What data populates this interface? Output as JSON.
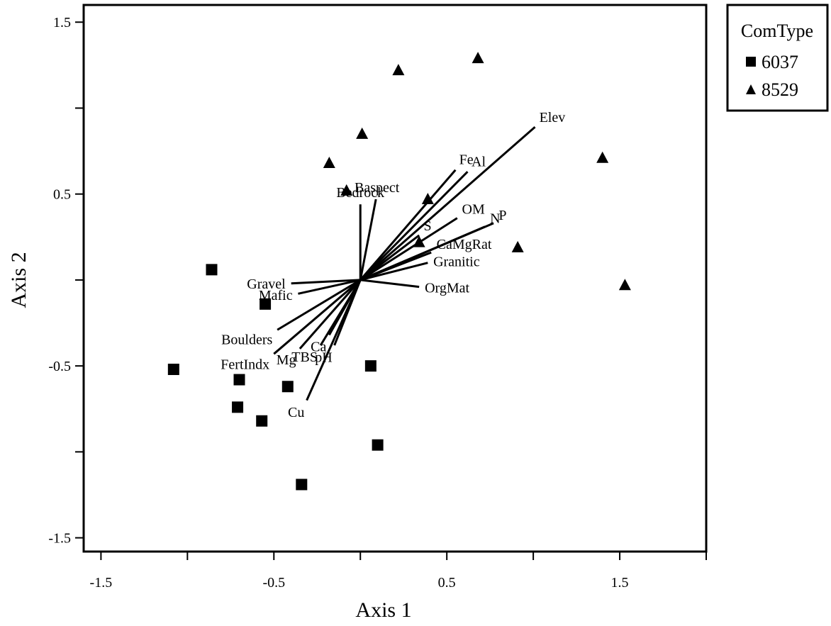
{
  "chart_data": {
    "type": "scatter",
    "xlabel": "Axis 1",
    "ylabel": "Axis 2",
    "xlim": [
      -1.6,
      2.0
    ],
    "ylim": [
      -1.58,
      1.6
    ],
    "xticks": [
      -1.5,
      -1.0,
      -0.5,
      0.0,
      0.5,
      1.0,
      1.5,
      2.0
    ],
    "yticks": [
      -1.5,
      -1.0,
      -0.5,
      0.0,
      0.5,
      1.0,
      1.5
    ],
    "xtick_labels": [
      "-1.5",
      "",
      "-0.5",
      "",
      "0.5",
      "",
      "1.5",
      ""
    ],
    "ytick_labels": [
      "-1.5",
      "",
      "-0.5",
      "",
      "0.5",
      "",
      "1.5"
    ],
    "grid": false,
    "legend": {
      "title": "ComType",
      "position": "outside-top-right",
      "entries": [
        {
          "label": "6037",
          "marker": "square"
        },
        {
          "label": "8529",
          "marker": "triangle"
        }
      ]
    },
    "series": [
      {
        "name": "6037",
        "marker": "square",
        "points": [
          {
            "x": -0.86,
            "y": 0.06
          },
          {
            "x": -0.55,
            "y": -0.14
          },
          {
            "x": -1.08,
            "y": -0.52
          },
          {
            "x": -0.7,
            "y": -0.58
          },
          {
            "x": -0.71,
            "y": -0.74
          },
          {
            "x": -0.57,
            "y": -0.82
          },
          {
            "x": -0.42,
            "y": -0.62
          },
          {
            "x": 0.06,
            "y": -0.5
          },
          {
            "x": 0.1,
            "y": -0.96
          },
          {
            "x": -0.34,
            "y": -1.19
          }
        ]
      },
      {
        "name": "8529",
        "marker": "triangle",
        "points": [
          {
            "x": 0.22,
            "y": 1.22
          },
          {
            "x": 0.68,
            "y": 1.29
          },
          {
            "x": 0.01,
            "y": 0.85
          },
          {
            "x": -0.18,
            "y": 0.68
          },
          {
            "x": -0.08,
            "y": 0.52
          },
          {
            "x": 0.39,
            "y": 0.47
          },
          {
            "x": 0.34,
            "y": 0.22
          },
          {
            "x": 0.91,
            "y": 0.19
          },
          {
            "x": 1.4,
            "y": 0.71
          },
          {
            "x": 1.53,
            "y": -0.03
          }
        ]
      }
    ],
    "vectors": [
      {
        "label": "Elev",
        "x": 1.01,
        "y": 0.89
      },
      {
        "label": "Fe",
        "x": 0.55,
        "y": 0.64
      },
      {
        "label": "Al",
        "x": 0.62,
        "y": 0.63
      },
      {
        "label": "Baspect",
        "x": 0.09,
        "y": 0.47
      },
      {
        "label": "Bedrock",
        "x": 0.0,
        "y": 0.44
      },
      {
        "label": "OM",
        "x": 0.56,
        "y": 0.36
      },
      {
        "label": "P",
        "x": 0.77,
        "y": 0.33
      },
      {
        "label": "N",
        "x": 0.72,
        "y": 0.31
      },
      {
        "label": "S",
        "x": 0.34,
        "y": 0.26
      },
      {
        "label": "CaMgRat",
        "x": 0.41,
        "y": 0.16
      },
      {
        "label": "Granitic",
        "x": 0.39,
        "y": 0.1
      },
      {
        "label": "OrgMat",
        "x": 0.34,
        "y": -0.04
      },
      {
        "label": "Gravel",
        "x": -0.4,
        "y": -0.02
      },
      {
        "label": "Mafic",
        "x": -0.36,
        "y": -0.08
      },
      {
        "label": "Boulders",
        "x": -0.48,
        "y": -0.29
      },
      {
        "label": "FertIndx",
        "x": -0.5,
        "y": -0.43
      },
      {
        "label": "Mg",
        "x": -0.35,
        "y": -0.4
      },
      {
        "label": "TBS",
        "x": -0.23,
        "y": -0.38
      },
      {
        "label": "Ca",
        "x": -0.18,
        "y": -0.32
      },
      {
        "label": "pH",
        "x": -0.15,
        "y": -0.38
      },
      {
        "label": "Cu",
        "x": -0.31,
        "y": -0.7
      }
    ]
  }
}
